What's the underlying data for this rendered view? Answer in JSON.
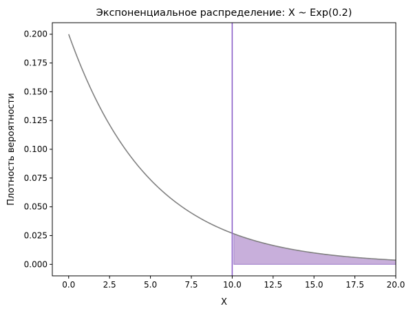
{
  "chart_data": {
    "type": "line",
    "title": "Экспоненциальное распределение: X ~ Exp(0.2)",
    "xlabel": "X",
    "ylabel": "Плотность вероятности",
    "xlim": [
      -1.0,
      20.0
    ],
    "ylim": [
      -0.01,
      0.21
    ],
    "xticks": [
      0.0,
      2.5,
      5.0,
      7.5,
      10.0,
      12.5,
      15.0,
      17.5,
      20.0
    ],
    "xtick_labels": [
      "0.0",
      "2.5",
      "5.0",
      "7.5",
      "10.0",
      "12.5",
      "15.0",
      "17.5",
      "20.0"
    ],
    "yticks": [
      0.0,
      0.025,
      0.05,
      0.075,
      0.1,
      0.125,
      0.15,
      0.175,
      0.2
    ],
    "ytick_labels": [
      "0.000",
      "0.025",
      "0.050",
      "0.075",
      "0.100",
      "0.125",
      "0.150",
      "0.175",
      "0.200"
    ],
    "grid": false,
    "series": [
      {
        "rate": 0.2,
        "x_range": [
          0,
          30
        ],
        "color": "#808080"
      }
    ],
    "shaded_region": {
      "x_start": 10.1,
      "x_end": 20,
      "color": "#c8afdb",
      "edge_color": "#9b78c8"
    },
    "vertical_line": {
      "x": 10.0,
      "color": "#8a5ec8"
    },
    "colors": {
      "frame": "#000000",
      "background": "#ffffff"
    }
  }
}
